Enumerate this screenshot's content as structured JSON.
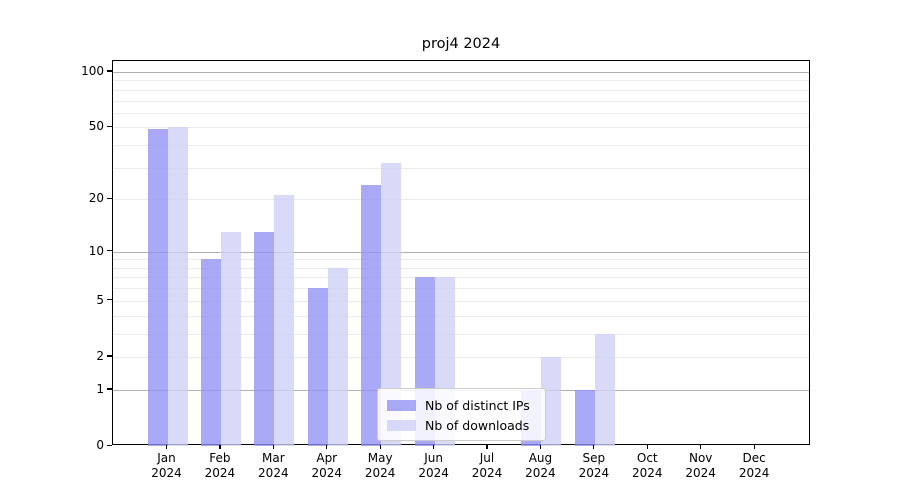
{
  "figure": {
    "background": "#ffffff"
  },
  "chart_data": {
    "type": "bar",
    "title": "proj4 2024",
    "categories": [
      "Jan",
      "Feb",
      "Mar",
      "Apr",
      "May",
      "Jun",
      "Jul",
      "Aug",
      "Sep",
      "Oct",
      "Nov",
      "Dec"
    ],
    "xtick_year": "2024",
    "series": [
      {
        "name": "Nb of distinct IPs",
        "key": "distinct-ips",
        "color": "rgba(145,145,245,0.78)",
        "values": [
          49,
          9,
          13,
          6,
          24,
          7,
          0,
          1,
          1,
          0,
          0,
          0
        ]
      },
      {
        "name": "Nb of downloads",
        "key": "downloads",
        "color": "rgba(206,206,246,0.78)",
        "values": [
          50,
          13,
          21,
          8,
          32,
          7,
          0,
          2,
          3,
          0,
          0,
          0
        ]
      }
    ],
    "xlabel": "",
    "ylabel": "",
    "yscale": "log1p",
    "ylim": [
      0,
      113.6
    ],
    "yticks": [
      0,
      1,
      2,
      5,
      10,
      20,
      50,
      100
    ],
    "major_gridlines": [
      1,
      10,
      100
    ],
    "minor_gridlines": [
      2,
      3,
      4,
      5,
      6,
      7,
      8,
      9,
      20,
      30,
      40,
      50,
      60,
      70,
      80,
      90
    ],
    "grid": true,
    "legend_position": "lower center",
    "colors": {
      "major_grid": "#b0b0b0",
      "minor_grid": "#ebebeb",
      "axis": "#000000",
      "text": "#000000"
    }
  }
}
